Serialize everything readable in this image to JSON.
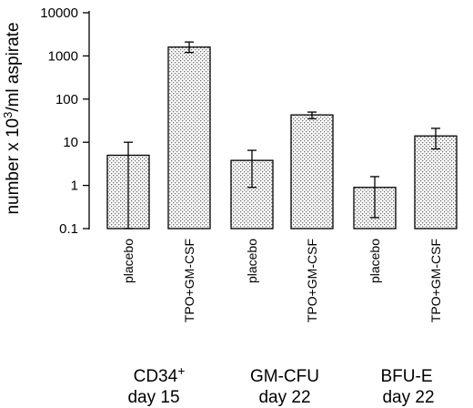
{
  "chart_data": {
    "type": "bar",
    "y_scale": "log",
    "ylim": [
      0.1,
      10000
    ],
    "y_ticks": [
      "0.1",
      "1",
      "10",
      "100",
      "1000",
      "10000"
    ],
    "ylabel": {
      "prefix": "number x 10",
      "sup": "3",
      "suffix": "/ml aspirate"
    },
    "groups": [
      {
        "line1": "CD34",
        "line1_sup": "+",
        "line2": "day 15"
      },
      {
        "line1": "GM-CFU",
        "line1_sup": "",
        "line2": "day 22"
      },
      {
        "line1": "BFU-E",
        "line1_sup": "",
        "line2": "day 22"
      }
    ],
    "categories": [
      "placebo",
      "TPO+GM-CSF",
      "placebo",
      "TPO+GM-CSF",
      "placebo",
      "TPO+GM-CSF"
    ],
    "values": [
      5,
      1600,
      3.8,
      43,
      0.9,
      14
    ],
    "error_low": [
      0.1,
      1200,
      0.9,
      35,
      0.18,
      7
    ],
    "error_high": [
      10,
      2100,
      6.5,
      50,
      1.6,
      21
    ],
    "fill": "dotted gray",
    "grid": false
  }
}
